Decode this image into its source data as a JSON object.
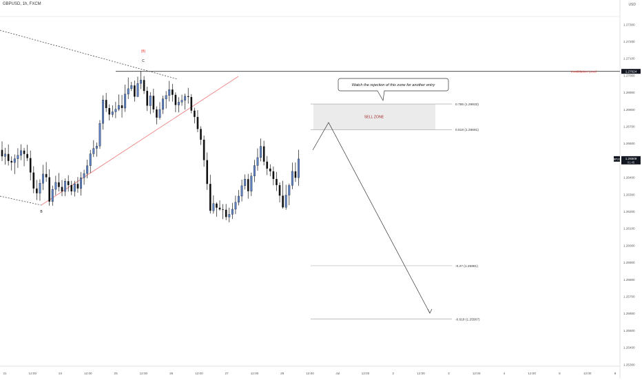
{
  "header": {
    "title": "GBPUSD, 1h, FXCM",
    "currency": "USD"
  },
  "chart_data": {
    "type": "candlestick",
    "symbol": "GBPUSD",
    "timeframe": "1h",
    "source": "FXCM",
    "ylim": [
      1.253,
      1.2742
    ],
    "y_ticks": [
      "1.27300",
      "1.27200",
      "1.27100",
      "1.27000",
      "1.26900",
      "1.26800",
      "1.26700",
      "1.26600",
      "1.26500",
      "1.26400",
      "1.26300",
      "1.26200",
      "1.26100",
      "1.26000",
      "1.25900",
      "1.25800",
      "1.25700",
      "1.25600",
      "1.25500",
      "1.25400",
      "1.25300"
    ],
    "x_tick_labels": [
      "21",
      "12:00",
      "24",
      "12:00",
      "25",
      "12:00",
      "26",
      "12:00",
      "27",
      "12:00",
      "28",
      "12:00",
      "Jul",
      "12:00",
      "2",
      "12:00",
      "3",
      "12:00",
      "4",
      "12:00",
      "5",
      "12:00",
      "8"
    ],
    "current_price": {
      "price": 1.26509,
      "label": "1.26509",
      "countdown": "01:45",
      "name": "GBPUSD"
    },
    "invalidation": {
      "price": 1.27024,
      "label": "1.27024",
      "text": "Invalidation Level"
    },
    "fib_levels": [
      {
        "ratio": "0.786",
        "price": 1.26832,
        "label": "0.786 (1.26832)"
      },
      {
        "ratio": "0.618",
        "price": 1.26681,
        "label": "0.618 (1.26681)"
      },
      {
        "ratio": "-0.27",
        "price": 1.25881,
        "label": "-0.27 (1.25881)"
      },
      {
        "ratio": "-0.618",
        "price": 1.25567,
        "label": "-0.618 (1.25567)"
      }
    ],
    "sell_zone": {
      "label": "SELL ZONE",
      "top": 1.26832,
      "bottom": 1.26681
    },
    "callout": "Watch the rejection of this zone for another entry",
    "wave_labels": {
      "b": "B",
      "c": "C",
      "degree": "(B)"
    },
    "colors": {
      "bull": "#5b7fc0",
      "bear": "#111111",
      "trendline": "#f08080",
      "invalidation": "#e53935",
      "wave_degree": "#e53935"
    },
    "candles": [
      [
        1.26562,
        1.26612,
        1.26496,
        1.26524
      ],
      [
        1.26524,
        1.26574,
        1.26475,
        1.26538
      ],
      [
        1.26538,
        1.26594,
        1.2647,
        1.26497
      ],
      [
        1.26497,
        1.26524,
        1.26441,
        1.26488
      ],
      [
        1.26488,
        1.26535,
        1.2642,
        1.2651
      ],
      [
        1.2651,
        1.26572,
        1.26456,
        1.2653
      ],
      [
        1.2653,
        1.26595,
        1.26502,
        1.26558
      ],
      [
        1.26558,
        1.26574,
        1.26466,
        1.26538
      ],
      [
        1.26538,
        1.26592,
        1.26497,
        1.26514
      ],
      [
        1.26514,
        1.26558,
        1.26383,
        1.26429
      ],
      [
        1.26429,
        1.26466,
        1.26307,
        1.26335
      ],
      [
        1.26335,
        1.26385,
        1.26267,
        1.26307
      ],
      [
        1.26307,
        1.26389,
        1.26263,
        1.26366
      ],
      [
        1.26366,
        1.26474,
        1.26326,
        1.2642
      ],
      [
        1.2642,
        1.26491,
        1.26374,
        1.26401
      ],
      [
        1.26401,
        1.26448,
        1.26234,
        1.26258
      ],
      [
        1.26258,
        1.26352,
        1.26233,
        1.2633
      ],
      [
        1.2633,
        1.2641,
        1.26296,
        1.26371
      ],
      [
        1.26371,
        1.26426,
        1.26318,
        1.26344
      ],
      [
        1.26344,
        1.26385,
        1.2629,
        1.26318
      ],
      [
        1.26318,
        1.26394,
        1.26291,
        1.26378
      ],
      [
        1.26378,
        1.26413,
        1.26317,
        1.26355
      ],
      [
        1.26355,
        1.2638,
        1.26296,
        1.26318
      ],
      [
        1.26318,
        1.2638,
        1.26288,
        1.26362
      ],
      [
        1.26362,
        1.26402,
        1.2631,
        1.26335
      ],
      [
        1.26335,
        1.26431,
        1.26293,
        1.26398
      ],
      [
        1.26398,
        1.26446,
        1.26357,
        1.26423
      ],
      [
        1.26423,
        1.26505,
        1.26395,
        1.26469
      ],
      [
        1.26469,
        1.26562,
        1.26426,
        1.26539
      ],
      [
        1.26539,
        1.26619,
        1.2652,
        1.26571
      ],
      [
        1.26571,
        1.26605,
        1.26522,
        1.26585
      ],
      [
        1.26585,
        1.26738,
        1.26568,
        1.26718
      ],
      [
        1.26718,
        1.26883,
        1.26681,
        1.26856
      ],
      [
        1.26856,
        1.26897,
        1.26785,
        1.26808
      ],
      [
        1.26808,
        1.2683,
        1.26735,
        1.2677
      ],
      [
        1.2677,
        1.26824,
        1.26754,
        1.26786
      ],
      [
        1.26786,
        1.26845,
        1.26749,
        1.26801
      ],
      [
        1.26801,
        1.26888,
        1.26791,
        1.26824
      ],
      [
        1.26824,
        1.26885,
        1.26752,
        1.26808
      ],
      [
        1.26808,
        1.26946,
        1.26786,
        1.2689
      ],
      [
        1.2689,
        1.26988,
        1.26861,
        1.26922
      ],
      [
        1.26922,
        1.26962,
        1.26908,
        1.26941
      ],
      [
        1.26941,
        1.2697,
        1.26846,
        1.26875
      ],
      [
        1.26875,
        1.26993,
        1.26874,
        1.26953
      ],
      [
        1.26953,
        1.27027,
        1.2692,
        1.26973
      ],
      [
        1.26973,
        1.26996,
        1.26891,
        1.26909
      ],
      [
        1.26909,
        1.26934,
        1.26791,
        1.26822
      ],
      [
        1.26822,
        1.26902,
        1.26773,
        1.2688
      ],
      [
        1.2688,
        1.26922,
        1.26781,
        1.268
      ],
      [
        1.268,
        1.26818,
        1.26712,
        1.26752
      ],
      [
        1.26752,
        1.26843,
        1.26741,
        1.268
      ],
      [
        1.268,
        1.26881,
        1.26773,
        1.26862
      ],
      [
        1.26862,
        1.26908,
        1.26805,
        1.26882
      ],
      [
        1.26882,
        1.26968,
        1.26847,
        1.26917
      ],
      [
        1.26917,
        1.2695,
        1.26846,
        1.26886
      ],
      [
        1.26886,
        1.269,
        1.26784,
        1.26826
      ],
      [
        1.26826,
        1.26872,
        1.26783,
        1.26843
      ],
      [
        1.26843,
        1.26886,
        1.26822,
        1.26854
      ],
      [
        1.26854,
        1.26893,
        1.26799,
        1.26878
      ],
      [
        1.26878,
        1.26927,
        1.26834,
        1.26873
      ],
      [
        1.26873,
        1.2689,
        1.26777,
        1.26793
      ],
      [
        1.26793,
        1.2681,
        1.26718,
        1.26756
      ],
      [
        1.26756,
        1.26796,
        1.26666,
        1.26685
      ],
      [
        1.26685,
        1.26701,
        1.26591,
        1.26622
      ],
      [
        1.26622,
        1.26646,
        1.26463,
        1.26502
      ],
      [
        1.26502,
        1.26547,
        1.26327,
        1.26362
      ],
      [
        1.26362,
        1.26416,
        1.26188,
        1.26204
      ],
      [
        1.26204,
        1.26295,
        1.26187,
        1.26246
      ],
      [
        1.26246,
        1.26254,
        1.26169,
        1.26222
      ],
      [
        1.26222,
        1.26265,
        1.26205,
        1.26212
      ],
      [
        1.26212,
        1.26243,
        1.26155,
        1.2621
      ],
      [
        1.2621,
        1.26244,
        1.26149,
        1.26167
      ],
      [
        1.26167,
        1.26222,
        1.26136,
        1.26183
      ],
      [
        1.26183,
        1.2625,
        1.26156,
        1.26213
      ],
      [
        1.26213,
        1.26293,
        1.26184,
        1.26254
      ],
      [
        1.26254,
        1.26326,
        1.26236,
        1.2629
      ],
      [
        1.2629,
        1.26387,
        1.26259,
        1.26351
      ],
      [
        1.26351,
        1.26418,
        1.26329,
        1.2639
      ],
      [
        1.2639,
        1.26421,
        1.26275,
        1.26319
      ],
      [
        1.26319,
        1.26428,
        1.26291,
        1.26408
      ],
      [
        1.26408,
        1.26503,
        1.26373,
        1.2647
      ],
      [
        1.2647,
        1.26571,
        1.26439,
        1.26517
      ],
      [
        1.26517,
        1.26629,
        1.26495,
        1.26583
      ],
      [
        1.26583,
        1.26616,
        1.26471,
        1.26493
      ],
      [
        1.26493,
        1.26526,
        1.26414,
        1.26452
      ],
      [
        1.26452,
        1.26477,
        1.26407,
        1.26436
      ],
      [
        1.26436,
        1.26464,
        1.26354,
        1.26391
      ],
      [
        1.26391,
        1.26432,
        1.2632,
        1.26355
      ],
      [
        1.26355,
        1.26371,
        1.26253,
        1.26293
      ],
      [
        1.26293,
        1.2638,
        1.26216,
        1.26224
      ],
      [
        1.26224,
        1.26357,
        1.2621,
        1.26296
      ],
      [
        1.26296,
        1.26364,
        1.26237,
        1.26353
      ],
      [
        1.26353,
        1.26487,
        1.26331,
        1.26436
      ],
      [
        1.26436,
        1.26488,
        1.26374,
        1.26398
      ],
      [
        1.26398,
        1.26562,
        1.26351,
        1.26509
      ]
    ]
  }
}
